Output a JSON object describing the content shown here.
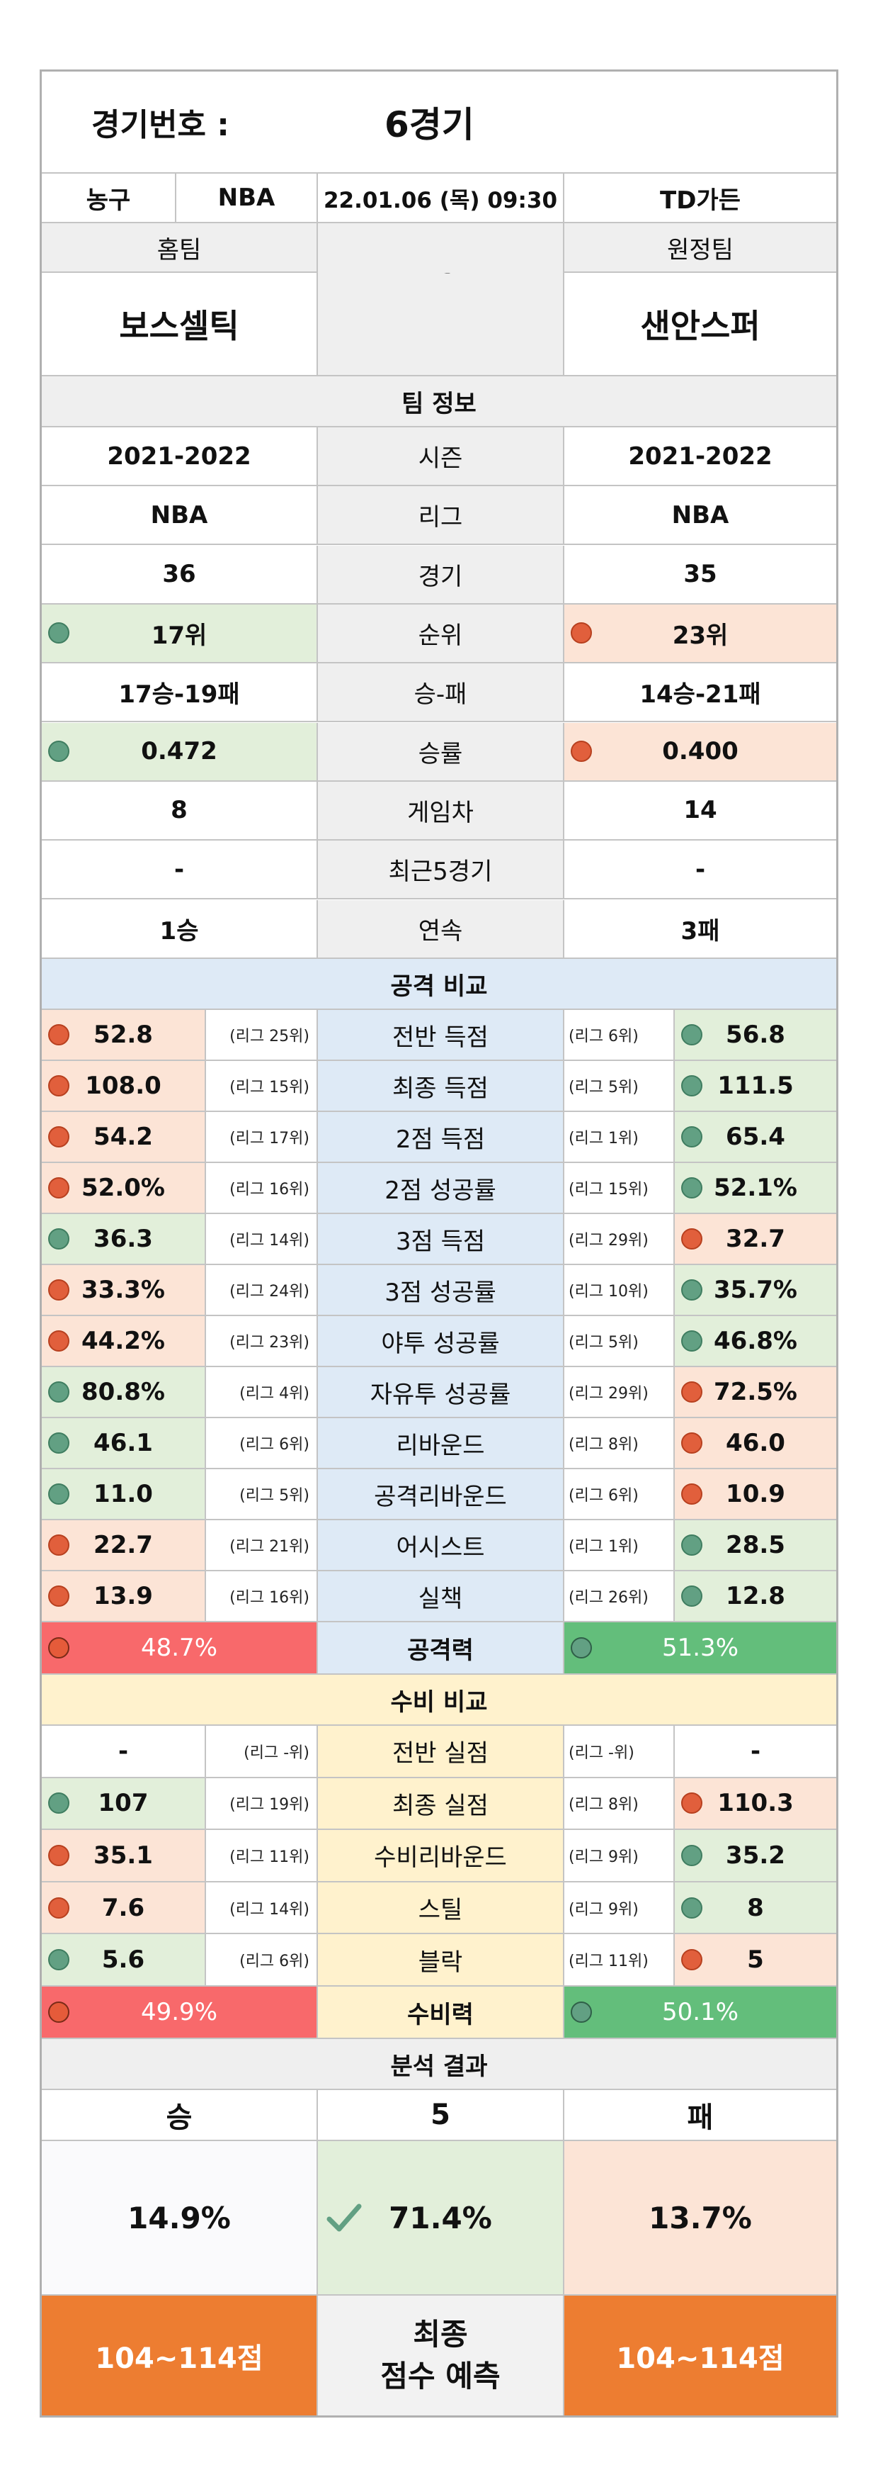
{
  "header": {
    "match_label": "경기번호 :",
    "match_no": "6경기",
    "sport": "농구",
    "league": "NBA",
    "datetime": "22.01.06 (목) 09:30",
    "venue": "TD가든",
    "home_label": "홈팀",
    "away_label": "원정팀",
    "vs": "vs",
    "home_team": "보스셀틱",
    "away_team": "샌안스퍼"
  },
  "team_info": {
    "title": "팀 정보",
    "rows": [
      {
        "label": "시즌",
        "home": "2021-2022",
        "away": "2021-2022"
      },
      {
        "label": "리그",
        "home": "NBA",
        "away": "NBA"
      },
      {
        "label": "경기",
        "home": "36",
        "away": "35"
      },
      {
        "label": "순위",
        "home": "17위",
        "away": "23위"
      },
      {
        "label": "승-패",
        "home": "17승-19패",
        "away": "14승-21패"
      },
      {
        "label": "승률",
        "home": "0.472",
        "away": "0.400"
      },
      {
        "label": "게임차",
        "home": "8",
        "away": "14"
      },
      {
        "label": "최근5경기",
        "home": "-",
        "away": "-"
      },
      {
        "label": "연속",
        "home": "1승",
        "away": "3패"
      }
    ]
  },
  "attack": {
    "title": "공격 비교",
    "rows": [
      {
        "label": "전반 득점",
        "home": "52.8",
        "home_rank": "(리그 25위)",
        "away_rank": "(리그 6위)",
        "away": "56.8"
      },
      {
        "label": "최종 득점",
        "home": "108.0",
        "home_rank": "(리그 15위)",
        "away_rank": "(리그 5위)",
        "away": "111.5"
      },
      {
        "label": "2점 득점",
        "home": "54.2",
        "home_rank": "(리그 17위)",
        "away_rank": "(리그 1위)",
        "away": "65.4"
      },
      {
        "label": "2점 성공률",
        "home": "52.0%",
        "home_rank": "(리그 16위)",
        "away_rank": "(리그 15위)",
        "away": "52.1%"
      },
      {
        "label": "3점 득점",
        "home": "36.3",
        "home_rank": "(리그 14위)",
        "away_rank": "(리그 29위)",
        "away": "32.7"
      },
      {
        "label": "3점 성공률",
        "home": "33.3%",
        "home_rank": "(리그 24위)",
        "away_rank": "(리그 10위)",
        "away": "35.7%"
      },
      {
        "label": "야투 성공률",
        "home": "44.2%",
        "home_rank": "(리그 23위)",
        "away_rank": "(리그 5위)",
        "away": "46.8%"
      },
      {
        "label": "자유투 성공률",
        "home": "80.8%",
        "home_rank": "(리그 4위)",
        "away_rank": "(리그 29위)",
        "away": "72.5%"
      },
      {
        "label": "리바운드",
        "home": "46.1",
        "home_rank": "(리그 6위)",
        "away_rank": "(리그 8위)",
        "away": "46.0"
      },
      {
        "label": "공격리바운드",
        "home": "11.0",
        "home_rank": "(리그 5위)",
        "away_rank": "(리그 6위)",
        "away": "10.9"
      },
      {
        "label": "어시스트",
        "home": "22.7",
        "home_rank": "(리그 21위)",
        "away_rank": "(리그 1위)",
        "away": "28.5"
      },
      {
        "label": "실책",
        "home": "13.9",
        "home_rank": "(리그 16위)",
        "away_rank": "(리그 26위)",
        "away": "12.8"
      }
    ],
    "power_label": "공격력",
    "home_power": "48.7%",
    "away_power": "51.3%"
  },
  "defense": {
    "title": "수비 비교",
    "rows": [
      {
        "label": "전반 실점",
        "home": "-",
        "home_rank": "(리그 -위)",
        "away_rank": "(리그 -위)",
        "away": "-"
      },
      {
        "label": "최종 실점",
        "home": "107",
        "home_rank": "(리그 19위)",
        "away_rank": "(리그 8위)",
        "away": "110.3"
      },
      {
        "label": "수비리바운드",
        "home": "35.1",
        "home_rank": "(리그 11위)",
        "away_rank": "(리그 9위)",
        "away": "35.2"
      },
      {
        "label": "스틸",
        "home": "7.6",
        "home_rank": "(리그 14위)",
        "away_rank": "(리그 9위)",
        "away": "8"
      },
      {
        "label": "블락",
        "home": "5.6",
        "home_rank": "(리그 6위)",
        "away_rank": "(리그 11위)",
        "away": "5"
      }
    ],
    "power_label": "수비력",
    "home_power": "49.9%",
    "away_power": "50.1%"
  },
  "analysis": {
    "title": "분석 결과",
    "win_label": "승",
    "handicap": "5",
    "loss_label": "패",
    "win_pct": "14.9%",
    "draw_pct": "71.4%",
    "loss_pct": "13.7%",
    "home_score": "104~114점",
    "final_label_1": "최종",
    "final_label_2": "점수 예측",
    "away_score": "104~114점"
  },
  "colors": {
    "good": "#e2efda",
    "bad": "#fce4d6",
    "good_dot": "#62a083",
    "bad_dot": "#e15f3c",
    "power_low": "#f8696b",
    "power_high": "#63be7b",
    "score": "#ed7d31"
  },
  "icons": {
    "good": "green-circle-icon",
    "bad": "red-circle-icon",
    "pick": "check-mark-icon"
  }
}
